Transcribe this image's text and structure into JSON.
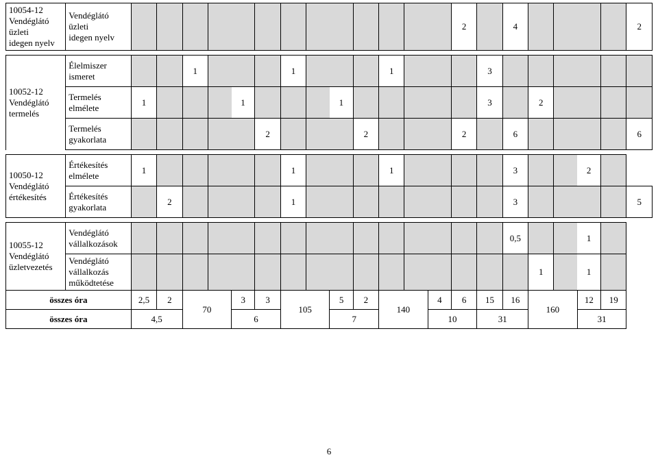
{
  "rows": {
    "r1": {
      "code": "10054-12\nVendéglátó üzleti\nidegen nyelv",
      "subject": "Vendéglátó üzleti\nidegen nyelv",
      "c3": "",
      "c4": "",
      "c5": "",
      "c6": "",
      "c7": "",
      "c8": "",
      "c9": "",
      "c10": "",
      "c11": "",
      "c12": "2",
      "c13": "",
      "c14": "4",
      "c15": "",
      "c16": "",
      "c17": "2"
    },
    "r2": {
      "subject": "Élelmiszer ismeret",
      "c3": "",
      "c4": "",
      "c5": "1",
      "c6": "",
      "c7": "",
      "c8": "1",
      "c9": "",
      "c10": "",
      "c11": "1",
      "c12": "",
      "c13": "3",
      "c14": "",
      "c15": "",
      "c16": "",
      "c17": ""
    },
    "r3": {
      "code": "10052-12\nVendéglátó termelés",
      "subject": "Termelés elmélete",
      "c3": "1",
      "c4": "",
      "c5": "",
      "c6": "1",
      "c7": "",
      "c8": "",
      "c9": "1",
      "c10": "",
      "c11": "",
      "c12": "",
      "c13": "3",
      "c14": "",
      "c15": "2",
      "c16": "",
      "c17": ""
    },
    "r4": {
      "subject": "Termelés gyakorlata",
      "c3": "",
      "c4": "",
      "c5": "",
      "c6": "2",
      "c7": "",
      "c8": "",
      "c9": "2",
      "c10": "",
      "c11": "",
      "c12": "2",
      "c13": "",
      "c14": "6",
      "c15": "",
      "c16": "",
      "c17": "6"
    },
    "r5": {
      "code": "10050-12\nVendéglátó\nértékesítés",
      "subject": "Értékesítés elmélete",
      "c3": "1",
      "c4": "",
      "c5": "",
      "c6": "",
      "c7": "1",
      "c8": "",
      "c9": "",
      "c10": "1",
      "c11": "",
      "c12": "",
      "c13": "",
      "c14": "3",
      "c15": "",
      "c16": "2",
      "c17": ""
    },
    "r6": {
      "subject": "Értékesítés\ngyakorlata",
      "c3": "",
      "c4": "2",
      "c5": "",
      "c6": "",
      "c7": "1",
      "c8": "",
      "c9": "",
      "c10": "",
      "c11": "",
      "c12": "",
      "c13": "",
      "c14": "3",
      "c15": "",
      "c16": "",
      "c17": "5"
    },
    "r7": {
      "code": "10055-12\nVendéglátó\nüzletvezetés",
      "subject": "Vendéglátó\nvállalkozások",
      "c3": "",
      "c4": "",
      "c5": "",
      "c6": "",
      "c7": "",
      "c8": "",
      "c9": "",
      "c10": "",
      "c11": "",
      "c12": "",
      "c13": "",
      "c14": "0,5",
      "c15": "",
      "c16": "1",
      "c17": ""
    },
    "r8": {
      "subject": "Vendéglátó\nvállalkozás\nműködtetése",
      "c3": "",
      "c4": "",
      "c5": "",
      "c6": "",
      "c7": "",
      "c8": "",
      "c9": "",
      "c10": "",
      "c11": "",
      "c12": "",
      "c13": "",
      "c14": "",
      "c15": "1",
      "c16": "1",
      "c17": ""
    }
  },
  "totals": {
    "label1": "összes óra",
    "label2": "összes óra",
    "t1": {
      "c3": "2,5",
      "c4": "2",
      "c6": "3",
      "c7": "3",
      "c9": "5",
      "c10": "2",
      "c12": "4",
      "c13": "6",
      "c14": "15",
      "c15": "16",
      "c17": "12",
      "c18": "19"
    },
    "m": {
      "c5": "70",
      "c8": "105",
      "c11": "140",
      "c16": "160"
    },
    "t2": {
      "c34": "4,5",
      "c67": "6",
      "c910": "7",
      "c1213": "10",
      "c1415": "31",
      "c1718": "31"
    }
  },
  "page_number": "6",
  "colors": {
    "shade": "#d9d9d9",
    "border": "#000000",
    "bg": "#ffffff",
    "text": "#000000"
  },
  "font": {
    "family": "Times New Roman",
    "size_pt": 10
  }
}
